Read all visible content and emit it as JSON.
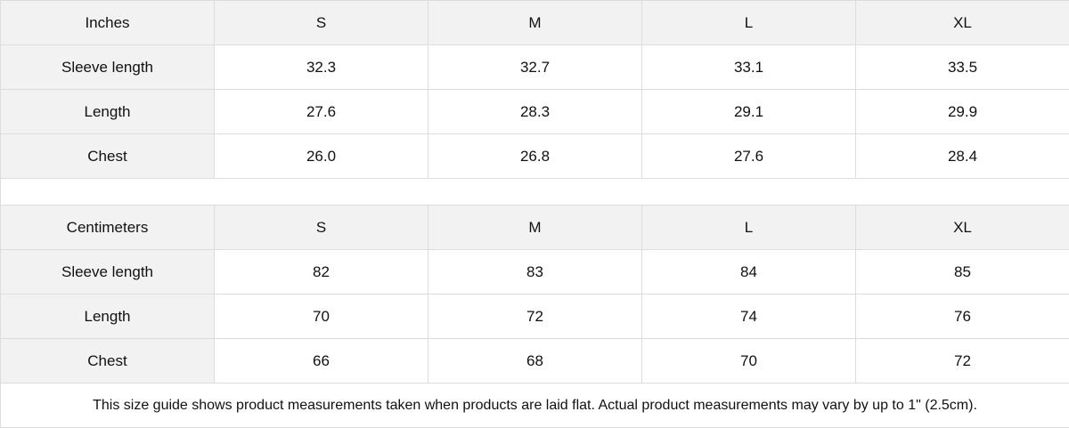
{
  "inches": {
    "header": [
      "Inches",
      "S",
      "M",
      "L",
      "XL"
    ],
    "rows": [
      {
        "label": "Sleeve length",
        "values": [
          "32.3",
          "32.7",
          "33.1",
          "33.5"
        ]
      },
      {
        "label": "Length",
        "values": [
          "27.6",
          "28.3",
          "29.1",
          "29.9"
        ]
      },
      {
        "label": "Chest",
        "values": [
          "26.0",
          "26.8",
          "27.6",
          "28.4"
        ]
      }
    ]
  },
  "centimeters": {
    "header": [
      "Centimeters",
      "S",
      "M",
      "L",
      "XL"
    ],
    "rows": [
      {
        "label": "Sleeve length",
        "values": [
          "82",
          "83",
          "84",
          "85"
        ]
      },
      {
        "label": "Length",
        "values": [
          "70",
          "72",
          "74",
          "76"
        ]
      },
      {
        "label": "Chest",
        "values": [
          "66",
          "68",
          "70",
          "72"
        ]
      }
    ]
  },
  "note": "This size guide shows product measurements taken when products are laid flat.  Actual product measurements may vary by up to 1\" (2.5cm).",
  "colors": {
    "header_bg": "#f2f2f2",
    "border": "#dcdcdc"
  }
}
